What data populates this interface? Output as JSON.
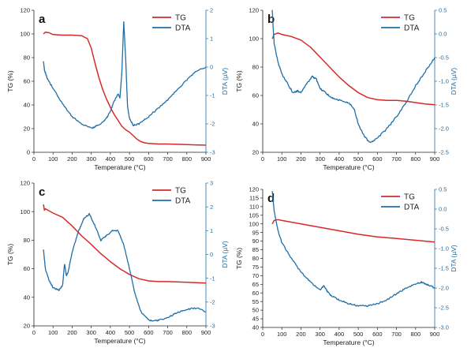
{
  "chart_data": [
    {
      "type": "line",
      "panel_label": "a",
      "xlabel": "Temperature (°C)",
      "ylabel": "TG (%)",
      "y2label": "DTA (µV)",
      "xlim": [
        0,
        900
      ],
      "ylim": [
        0,
        120
      ],
      "y2lim": [
        -3,
        2
      ],
      "xticks": [
        0,
        100,
        200,
        300,
        400,
        500,
        600,
        700,
        800,
        900
      ],
      "yticks": [
        0,
        20,
        40,
        60,
        80,
        100,
        120
      ],
      "y2ticks": [
        -3,
        -2,
        -1,
        0,
        1,
        2
      ],
      "legend_position": "top-right",
      "series": [
        {
          "name": "TG",
          "axis": "left",
          "color": "#d62a2a",
          "x": [
            50,
            60,
            80,
            100,
            150,
            200,
            250,
            280,
            300,
            320,
            340,
            360,
            380,
            400,
            420,
            440,
            460,
            480,
            500,
            520,
            540,
            560,
            580,
            600,
            650,
            700,
            800,
            900
          ],
          "y": [
            100,
            101.5,
            101,
            99.5,
            99,
            99,
            98.5,
            96,
            88,
            75,
            63,
            53,
            45,
            38,
            32,
            27,
            22,
            19,
            17,
            14,
            11,
            9,
            8,
            7.5,
            7,
            7,
            6.5,
            6
          ]
        },
        {
          "name": "DTA",
          "axis": "right",
          "color": "#1f6fa8",
          "x": [
            50,
            55,
            60,
            70,
            100,
            150,
            200,
            250,
            300,
            320,
            350,
            380,
            400,
            420,
            440,
            450,
            460,
            470,
            480,
            490,
            500,
            520,
            550,
            600,
            650,
            700,
            750,
            800,
            850,
            900
          ],
          "y": [
            0.2,
            -0.1,
            -0.2,
            -0.4,
            -0.75,
            -1.3,
            -1.75,
            -2.0,
            -2.15,
            -2.1,
            -2.0,
            -1.8,
            -1.55,
            -1.2,
            -0.95,
            -1.1,
            -0.2,
            1.6,
            0.3,
            -1.4,
            -1.8,
            -2.05,
            -2.0,
            -1.75,
            -1.45,
            -1.15,
            -0.8,
            -0.45,
            -0.15,
            0.0
          ]
        }
      ]
    },
    {
      "type": "line",
      "panel_label": "b",
      "xlabel": "Temperature (°C)",
      "ylabel": "TG (%)",
      "y2label": "DTA (µV)",
      "xlim": [
        0,
        900
      ],
      "ylim": [
        20,
        120
      ],
      "y2lim": [
        -2.5,
        0.5
      ],
      "xticks": [
        0,
        100,
        200,
        300,
        400,
        500,
        600,
        700,
        800,
        900
      ],
      "yticks": [
        20,
        40,
        60,
        80,
        100,
        120
      ],
      "y2ticks": [
        -2.5,
        -2.0,
        -1.5,
        -1.0,
        -0.5,
        0.0,
        0.5
      ],
      "legend_position": "top-right",
      "series": [
        {
          "name": "TG",
          "axis": "left",
          "color": "#d62a2a",
          "x": [
            50,
            60,
            80,
            100,
            150,
            200,
            250,
            300,
            350,
            400,
            450,
            500,
            550,
            600,
            650,
            700,
            750,
            800,
            850,
            900
          ],
          "y": [
            100,
            103,
            104,
            103,
            101.5,
            99,
            94,
            87,
            80,
            73,
            67,
            62,
            58.5,
            57,
            56.5,
            56.5,
            56,
            55,
            54,
            53.5
          ]
        },
        {
          "name": "DTA",
          "axis": "right",
          "color": "#1f6fa8",
          "x": [
            50,
            55,
            60,
            80,
            100,
            130,
            160,
            180,
            200,
            230,
            260,
            280,
            300,
            330,
            360,
            400,
            450,
            480,
            500,
            530,
            560,
            600,
            650,
            700,
            750,
            800,
            850,
            900
          ],
          "y": [
            0.5,
            0.1,
            -0.2,
            -0.6,
            -0.85,
            -1.05,
            -1.25,
            -1.2,
            -1.25,
            -1.05,
            -0.9,
            -0.95,
            -1.15,
            -1.25,
            -1.35,
            -1.4,
            -1.45,
            -1.6,
            -1.9,
            -2.15,
            -2.3,
            -2.2,
            -2.0,
            -1.75,
            -1.45,
            -1.1,
            -0.8,
            -0.5
          ]
        }
      ]
    },
    {
      "type": "line",
      "panel_label": "c",
      "xlabel": "Temperature (°C)",
      "ylabel": "TG (%)",
      "y2label": "DTA (µV)",
      "xlim": [
        0,
        900
      ],
      "ylim": [
        20,
        120
      ],
      "y2lim": [
        -3,
        3
      ],
      "xticks": [
        0,
        100,
        200,
        300,
        400,
        500,
        600,
        700,
        800,
        900
      ],
      "yticks": [
        20,
        40,
        60,
        80,
        100,
        120
      ],
      "y2ticks": [
        -3,
        -2,
        -1,
        0,
        1,
        2,
        3
      ],
      "legend_position": "top-right",
      "series": [
        {
          "name": "TG",
          "axis": "left",
          "color": "#d62a2a",
          "x": [
            50,
            55,
            60,
            100,
            150,
            200,
            250,
            300,
            350,
            400,
            450,
            500,
            550,
            600,
            650,
            700,
            800,
            900
          ],
          "y": [
            105,
            101,
            102,
            99,
            96,
            90,
            83,
            77,
            70.5,
            65,
            60,
            56,
            53,
            51.5,
            51,
            51,
            50.5,
            50
          ]
        },
        {
          "name": "DTA",
          "axis": "right",
          "color": "#1f6fa8",
          "x": [
            50,
            55,
            60,
            80,
            100,
            130,
            150,
            160,
            170,
            180,
            200,
            230,
            260,
            290,
            320,
            350,
            380,
            410,
            440,
            470,
            500,
            530,
            560,
            600,
            630,
            660,
            700,
            750,
            800,
            850,
            900
          ],
          "y": [
            0.2,
            -0.2,
            -0.6,
            -1.1,
            -1.4,
            -1.5,
            -1.3,
            -0.4,
            -0.9,
            -0.7,
            0.1,
            0.9,
            1.5,
            1.7,
            1.2,
            0.6,
            0.8,
            1.0,
            1.0,
            0.4,
            -0.6,
            -1.7,
            -2.4,
            -2.75,
            -2.8,
            -2.75,
            -2.65,
            -2.45,
            -2.3,
            -2.25,
            -2.4
          ]
        }
      ]
    },
    {
      "type": "line",
      "panel_label": "d",
      "xlabel": "Temperature (°C)",
      "ylabel": "TG (%)",
      "y2label": "DTA (µV)",
      "xlim": [
        0,
        900
      ],
      "ylim": [
        40,
        120
      ],
      "y2lim": [
        -3.0,
        0.5
      ],
      "xticks": [
        0,
        100,
        200,
        300,
        400,
        500,
        600,
        700,
        800,
        900
      ],
      "yticks": [
        40,
        45,
        50,
        55,
        60,
        65,
        70,
        75,
        80,
        85,
        90,
        95,
        100,
        105,
        110,
        115,
        120
      ],
      "y2ticks": [
        -3.0,
        -2.5,
        -2.0,
        -1.5,
        -1.0,
        -0.5,
        0.0,
        0.5
      ],
      "legend_position": "top-right",
      "series": [
        {
          "name": "TG",
          "axis": "left",
          "color": "#d62a2a",
          "x": [
            50,
            60,
            80,
            100,
            200,
            300,
            400,
            500,
            600,
            700,
            800,
            900
          ],
          "y": [
            100,
            102,
            102.5,
            102,
            100,
            98,
            96,
            94,
            92.5,
            91.5,
            90.5,
            89.5
          ]
        },
        {
          "name": "DTA",
          "axis": "right",
          "color": "#1f6fa8",
          "x": [
            50,
            55,
            60,
            70,
            80,
            100,
            150,
            200,
            250,
            300,
            320,
            340,
            360,
            400,
            450,
            500,
            550,
            600,
            650,
            700,
            750,
            800,
            830,
            850,
            880,
            900
          ],
          "y": [
            0.45,
            0.2,
            -0.05,
            -0.3,
            -0.55,
            -0.85,
            -1.25,
            -1.6,
            -1.85,
            -2.05,
            -1.95,
            -2.1,
            -2.2,
            -2.3,
            -2.4,
            -2.45,
            -2.45,
            -2.4,
            -2.3,
            -2.15,
            -2.0,
            -1.9,
            -1.85,
            -1.9,
            -1.95,
            -2.0
          ]
        }
      ]
    }
  ]
}
